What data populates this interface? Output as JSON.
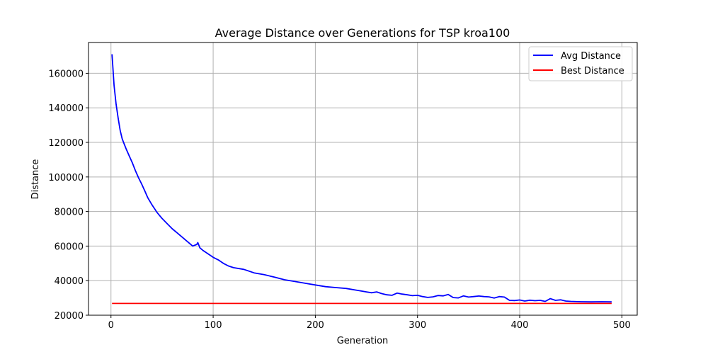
{
  "chart_data": {
    "type": "line",
    "title": "Average Distance over Generations for TSP kroa100",
    "xlabel": "Generation",
    "ylabel": "Distance",
    "xlim": [
      -22,
      515
    ],
    "ylim": [
      20000,
      177800
    ],
    "xticks": [
      0,
      100,
      200,
      300,
      400,
      500
    ],
    "yticks": [
      20000,
      40000,
      60000,
      80000,
      100000,
      120000,
      140000,
      160000
    ],
    "grid": true,
    "legend_position": "top-right",
    "series": [
      {
        "name": "Avg Distance",
        "color": "#0000ff",
        "x": [
          1,
          3,
          5,
          7,
          9,
          11,
          13,
          15,
          18,
          21,
          24,
          27,
          30,
          33,
          36,
          40,
          45,
          50,
          55,
          60,
          65,
          70,
          75,
          80,
          84,
          85,
          87,
          90,
          95,
          100,
          105,
          110,
          115,
          120,
          130,
          140,
          150,
          160,
          170,
          180,
          190,
          200,
          210,
          220,
          230,
          240,
          250,
          255,
          260,
          265,
          270,
          275,
          280,
          285,
          290,
          295,
          300,
          305,
          310,
          315,
          320,
          325,
          330,
          335,
          340,
          345,
          350,
          355,
          360,
          365,
          370,
          375,
          380,
          385,
          390,
          395,
          400,
          405,
          410,
          415,
          420,
          425,
          430,
          435,
          440,
          445,
          450,
          460,
          470,
          480,
          490
        ],
        "y": [
          171000,
          153000,
          142000,
          134000,
          127000,
          122000,
          119000,
          116000,
          112000,
          108000,
          103500,
          99500,
          96000,
          92000,
          88000,
          84000,
          79500,
          76000,
          73000,
          70000,
          67500,
          65000,
          62500,
          60000,
          61000,
          62000,
          59000,
          57500,
          55500,
          53500,
          52000,
          50000,
          48500,
          47500,
          46500,
          44500,
          43500,
          42000,
          40500,
          39500,
          38500,
          37500,
          36500,
          36000,
          35500,
          34500,
          33500,
          33000,
          33500,
          32500,
          31800,
          31500,
          32800,
          32200,
          31800,
          31300,
          31500,
          30800,
          30300,
          30600,
          31400,
          31200,
          32000,
          30200,
          30000,
          31200,
          30500,
          30800,
          31100,
          30800,
          30600,
          29900,
          30800,
          30500,
          28600,
          28500,
          28800,
          28200,
          28700,
          28400,
          28600,
          28000,
          29600,
          28600,
          28900,
          28200,
          28000,
          27800,
          27700,
          27800,
          27700
        ]
      },
      {
        "name": "Best Distance",
        "color": "#ff0000",
        "x": [
          1,
          490
        ],
        "y": [
          26800,
          26800
        ]
      }
    ]
  }
}
